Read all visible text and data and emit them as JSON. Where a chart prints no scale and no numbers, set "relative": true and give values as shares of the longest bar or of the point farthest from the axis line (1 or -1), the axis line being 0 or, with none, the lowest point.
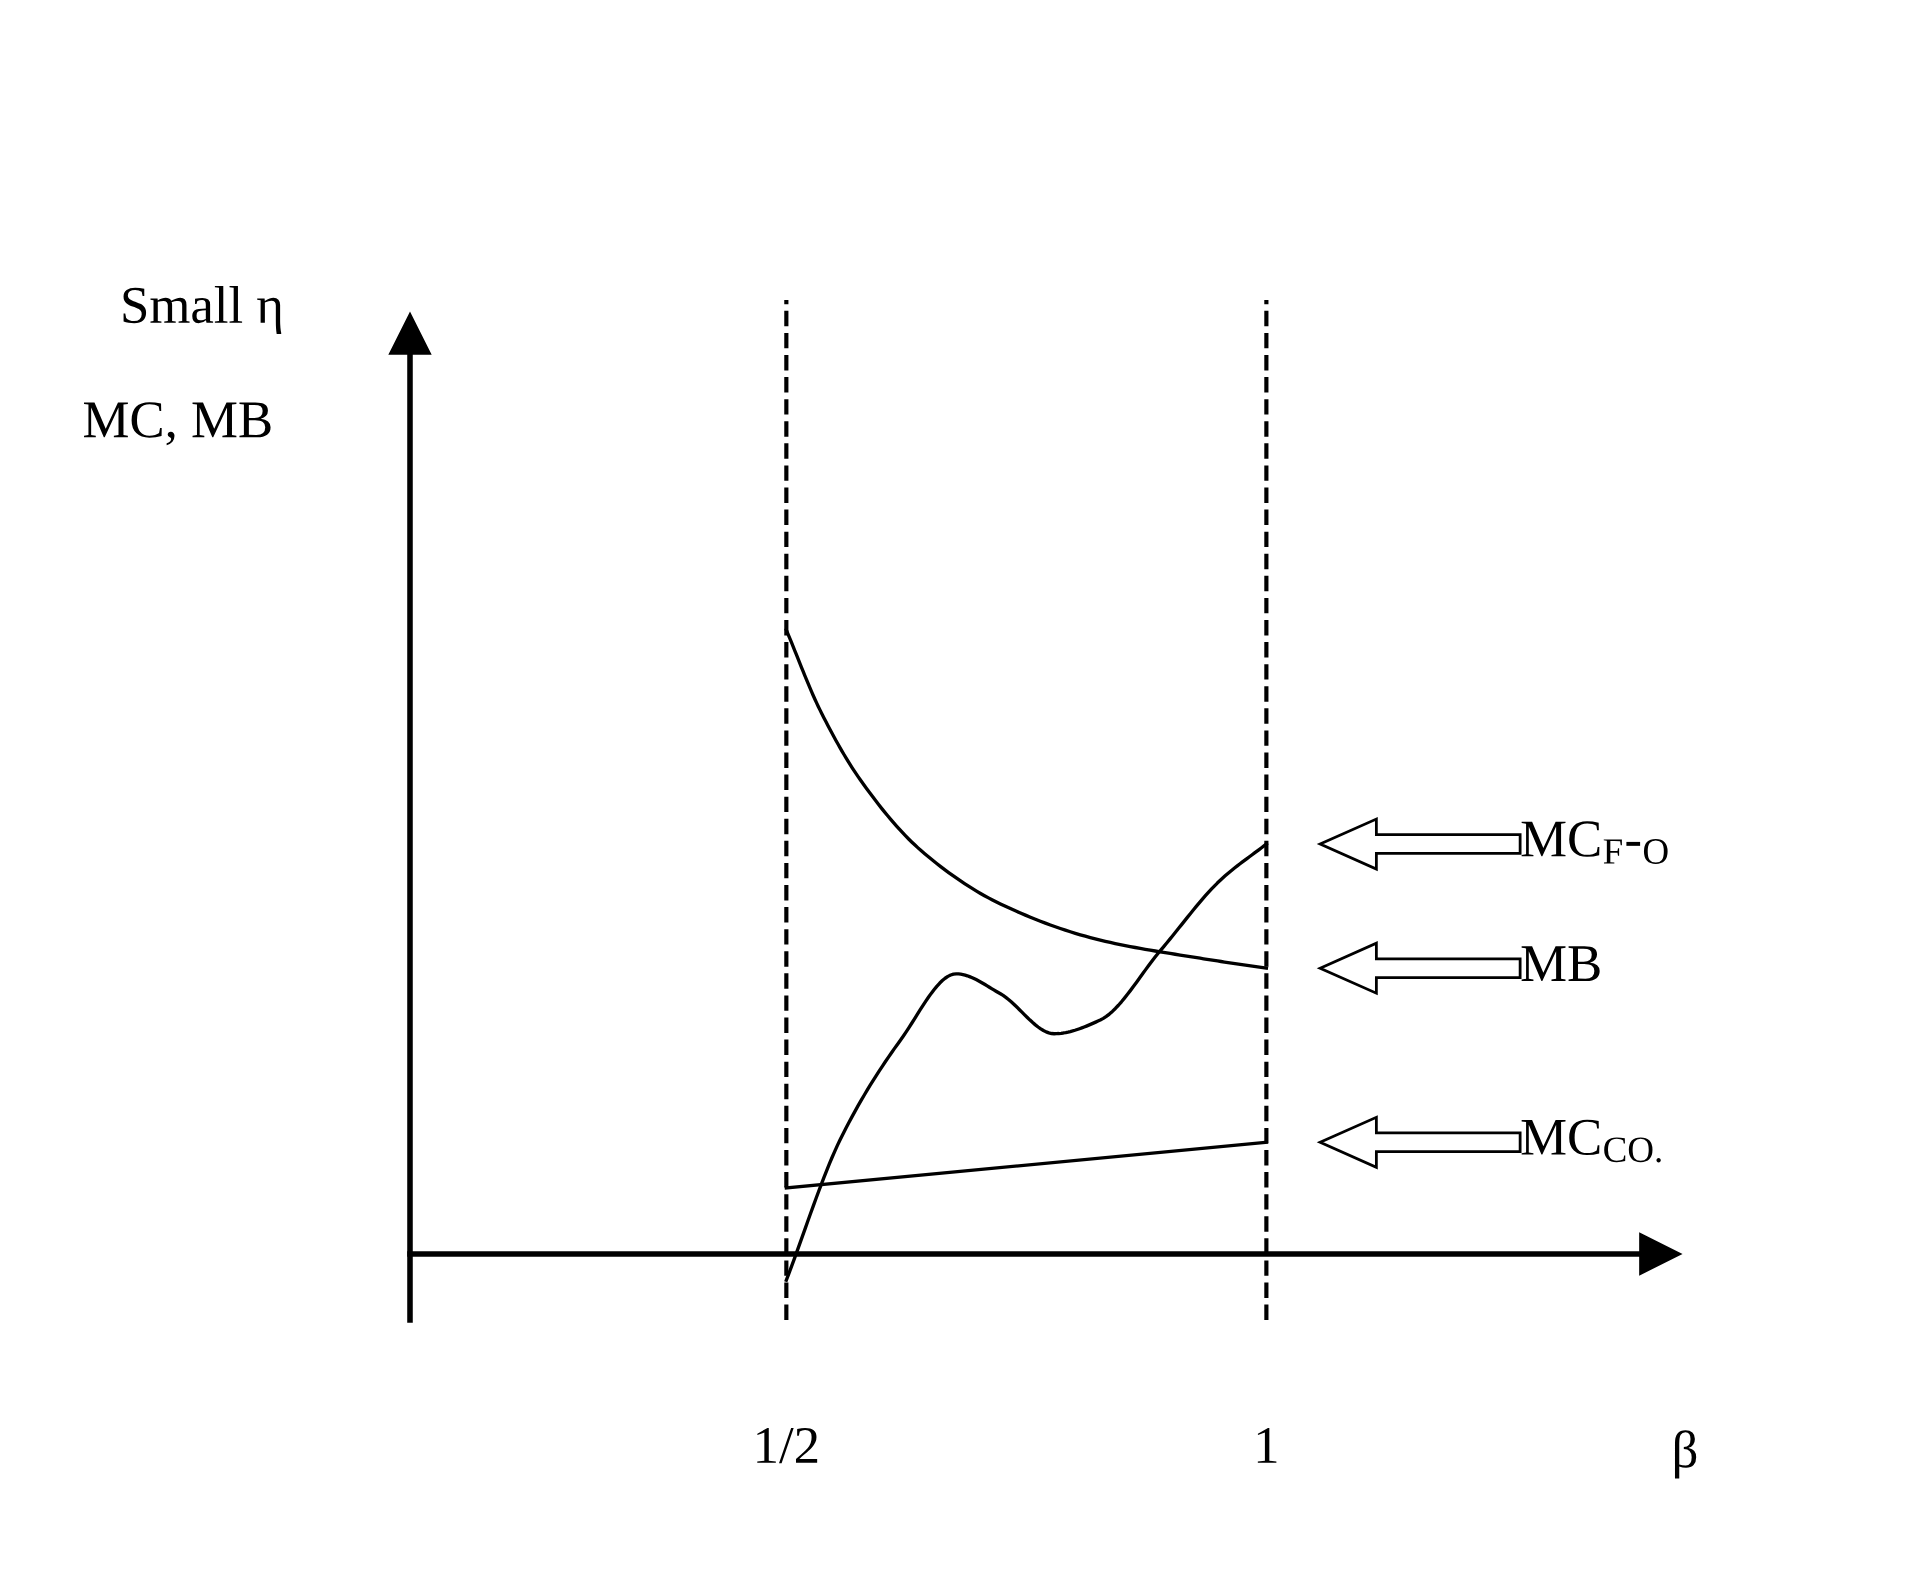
{
  "chart_data": {
    "type": "line",
    "title": "Small η",
    "xlabel": "β",
    "ylabel": "MC, MB",
    "relative": true,
    "xlim": [
      0.108,
      1.41
    ],
    "xticks": [
      {
        "value": 0.5,
        "label": "1/2"
      },
      {
        "value": 1,
        "label": "1"
      }
    ],
    "tick_labels": "x",
    "grid": false,
    "legend": "right",
    "marker": "none",
    "line_style": "solid",
    "ref_lines": [
      {
        "axis": "x",
        "value": 0.5,
        "color": "#000000",
        "line_style": "dashed"
      },
      {
        "axis": "x",
        "value": 1,
        "color": "#000000",
        "line_style": "dashed"
      }
    ],
    "series": [
      {
        "name": "MC$_{F}$-$_{O}$",
        "color": "#000000",
        "x": [
          0.5,
          0.556,
          0.619,
          0.677,
          0.723,
          0.779,
          0.827,
          0.89,
          0.952,
          1.0
        ],
        "values": [
          -0.042,
          0.183,
          0.343,
          0.449,
          0.417,
          0.353,
          0.375,
          0.487,
          0.599,
          0.657
        ]
      },
      {
        "name": "MB",
        "color": "#000000",
        "x": [
          0.5,
          0.535,
          0.577,
          0.64,
          0.723,
          0.827,
          0.931,
          1.0
        ],
        "values": [
          1.0,
          0.872,
          0.76,
          0.647,
          0.561,
          0.503,
          0.474,
          0.458
        ]
      },
      {
        "name": "MC$_{CO.}$",
        "color": "#000000",
        "x": [
          0.5,
          1.0
        ],
        "values": [
          0.106,
          0.179
        ]
      }
    ]
  }
}
